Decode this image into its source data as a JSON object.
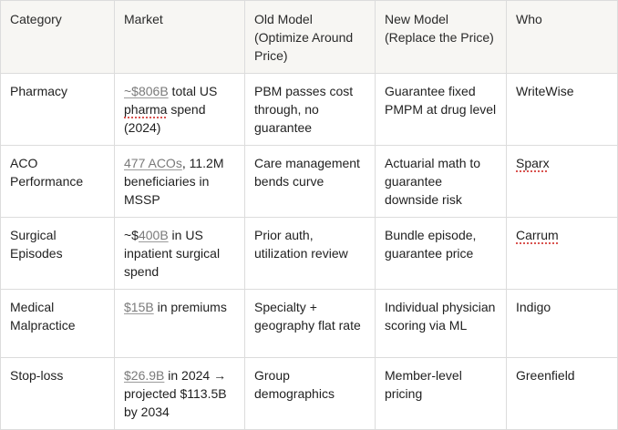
{
  "headers": {
    "category": "Category",
    "market": "Market",
    "old_model": "Old Model (Optimize Around Price)",
    "new_model": "New Model (Replace the Price)",
    "who": "Who"
  },
  "rows": [
    {
      "category": "Pharmacy",
      "market_link": "~$806B",
      "market_rest_a": " total US ",
      "market_spell": "pharma",
      "market_rest_b": " spend (2024)",
      "old_model": "PBM passes cost through, no guarantee",
      "new_model": "Guarantee fixed PMPM at drug level",
      "who": "WriteWise"
    },
    {
      "category": "ACO Performance",
      "market_link": "477 ACOs",
      "market_rest": ", 11.2M beneficiaries in MSSP",
      "old_model": "Care management bends curve",
      "new_model": "Actuarial math to guarantee downside risk",
      "who": "Sparx"
    },
    {
      "category": "Surgical Episodes",
      "market_pre": "~$",
      "market_link": "400B",
      "market_rest": " in US inpatient surgical spend",
      "old_model": "Prior auth, utilization review",
      "new_model": "Bundle episode, guarantee price",
      "who": "Carrum"
    },
    {
      "category": "Medical Malpractice",
      "market_link": "$15B",
      "market_rest": " in premiums",
      "old_model": "Specialty + geography flat rate",
      "new_model": "Individual physician scoring via ML",
      "who": "Indigo"
    },
    {
      "category": "Stop-loss",
      "market_link": "$26.9B",
      "market_rest": " in 2024 → projected $113.5B by 2034",
      "old_model": "Group demographics",
      "new_model": "Member-level pricing",
      "who": "Greenfield"
    }
  ]
}
